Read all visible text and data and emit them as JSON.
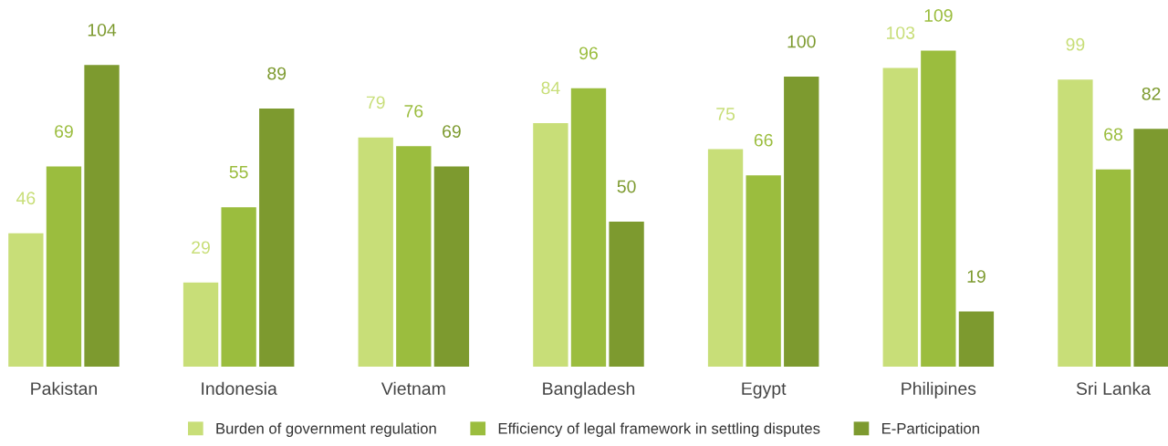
{
  "chart_data": {
    "type": "bar",
    "categories": [
      "Pakistan",
      "Indonesia",
      "Vietnam",
      "Bangladesh",
      "Egypt",
      "Philipines",
      "Sri Lanka"
    ],
    "series": [
      {
        "name": "Burden of government regulation",
        "color": "#c8de78",
        "values": [
          46,
          29,
          79,
          84,
          75,
          103,
          99
        ]
      },
      {
        "name": "Efficiency of legal framework in settling disputes",
        "color": "#9bbd3e",
        "values": [
          69,
          55,
          76,
          96,
          66,
          109,
          68
        ]
      },
      {
        "name": "E-Participation",
        "color": "#7d9a2f",
        "values": [
          104,
          89,
          69,
          50,
          100,
          19,
          82
        ]
      }
    ],
    "data_labels": true,
    "grid": false,
    "legend": "bottom"
  }
}
